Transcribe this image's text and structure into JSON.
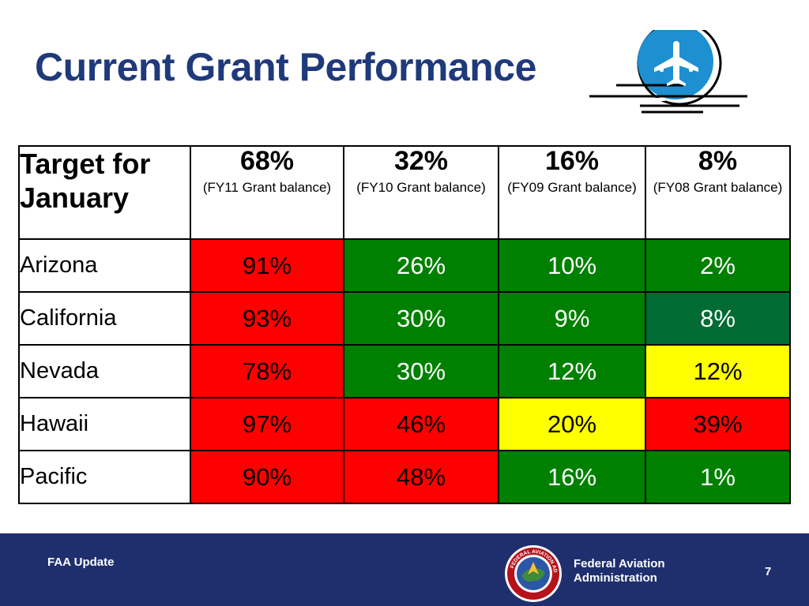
{
  "slide": {
    "title": "Current Grant Performance"
  },
  "table": {
    "corner_label": "Target for January",
    "targets": [
      {
        "pct": "68%",
        "note": "(FY11 Grant balance)"
      },
      {
        "pct": "32%",
        "note": "(FY10 Grant balance)"
      },
      {
        "pct": "16%",
        "note": "(FY09 Grant balance)"
      },
      {
        "pct": "8%",
        "note": "(FY08 Grant balance)"
      }
    ],
    "rows": [
      {
        "region": "Arizona",
        "values": [
          "91%",
          "26%",
          "10%",
          "2%"
        ],
        "status": [
          "red",
          "green",
          "green",
          "green"
        ]
      },
      {
        "region": "California",
        "values": [
          "93%",
          "30%",
          "9%",
          "8%"
        ],
        "status": [
          "red",
          "green",
          "green",
          "darkgreen"
        ]
      },
      {
        "region": "Nevada",
        "values": [
          "78%",
          "30%",
          "12%",
          "12%"
        ],
        "status": [
          "red",
          "green",
          "green",
          "yellow"
        ]
      },
      {
        "region": "Hawaii",
        "values": [
          "97%",
          "46%",
          "20%",
          "39%"
        ],
        "status": [
          "red",
          "red",
          "yellow",
          "red"
        ]
      },
      {
        "region": "Pacific",
        "values": [
          "90%",
          "48%",
          "16%",
          "1%"
        ],
        "status": [
          "red",
          "red",
          "green",
          "green"
        ]
      }
    ]
  },
  "colors": {
    "red": "#ff0000",
    "green": "#008000",
    "darkgreen": "#006b32",
    "yellow": "#ffff00",
    "title": "#1f3a7a",
    "footer": "#1f2f6e",
    "logo": "#1e8fd0"
  },
  "footer": {
    "left_label": "FAA Update",
    "agency_line1": "Federal Aviation",
    "agency_line2": "Administration",
    "page_number": "7",
    "seal_text": "FEDERAL AVIATION ADMINISTRATION"
  },
  "icons": {
    "plane": "airplane-icon",
    "seal": "faa-seal-icon"
  }
}
